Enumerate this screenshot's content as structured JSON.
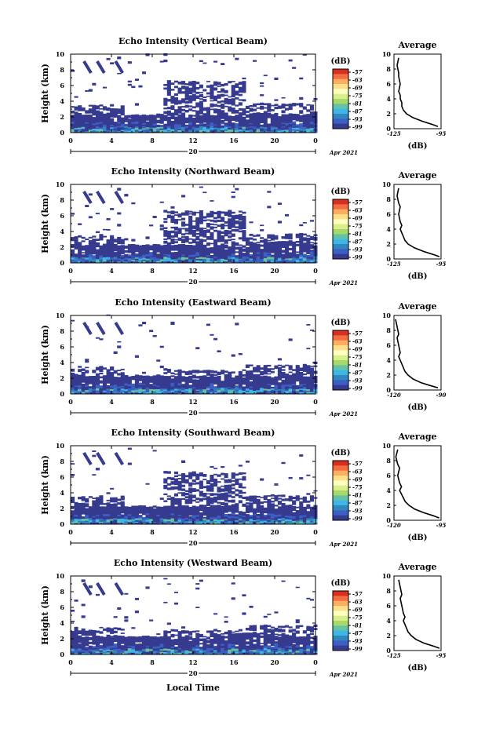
{
  "figure": {
    "xlabel": "Local Time",
    "date_label": "Apr 2021",
    "day_label": "20",
    "colorbar": {
      "unit": "(dB)",
      "ticks": [
        "-57",
        "-63",
        "-69",
        "-75",
        "-81",
        "-87",
        "-93",
        "-99"
      ],
      "colors": [
        "#d7301f",
        "#f46d43",
        "#fdae61",
        "#fee08b",
        "#ffffbf",
        "#d9ef8b",
        "#a6d96a",
        "#66c2a5",
        "#3fb6e8",
        "#3288bd",
        "#3b5fc4",
        "#363b8f"
      ]
    },
    "avg_title": "Average",
    "avg_xlabel": "(dB)"
  },
  "chart_data": [
    {
      "type": "heatmap",
      "title": "Echo Intensity (Vertical Beam)",
      "ylabel": "Height (km)",
      "xlabel": "Local Time",
      "xlim": [
        0,
        24
      ],
      "ylim": [
        0,
        10
      ],
      "xticks": [
        "0",
        "4",
        "8",
        "12",
        "16",
        "20",
        "0"
      ],
      "yticks": [
        "0",
        "2",
        "4",
        "6",
        "8",
        "10"
      ],
      "profile": {
        "type": "line",
        "title": "Average",
        "xlabel": "(dB)",
        "xlim": [
          -125,
          -95
        ],
        "xtick_labels": [
          "-125",
          "-95"
        ],
        "x": [
          -97,
          -101,
          -107,
          -113,
          -117,
          -119,
          -120,
          -120,
          -121,
          -121,
          -122,
          -121,
          -122,
          -122,
          -123,
          -122
        ],
        "y": [
          0.3,
          0.6,
          1.0,
          1.5,
          2.0,
          2.5,
          3.0,
          3.5,
          4.0,
          4.5,
          5.0,
          6.0,
          7.0,
          7.5,
          8.5,
          9.5
        ]
      }
    },
    {
      "type": "heatmap",
      "title": "Echo Intensity (Northward Beam)",
      "ylabel": "Height (km)",
      "xlabel": "Local Time",
      "xlim": [
        0,
        24
      ],
      "ylim": [
        0,
        10
      ],
      "xticks": [
        "0",
        "4",
        "8",
        "12",
        "16",
        "20",
        "0"
      ],
      "yticks": [
        "0",
        "2",
        "4",
        "6",
        "8",
        "10"
      ],
      "profile": {
        "type": "line",
        "title": "Average",
        "xlabel": "(dB)",
        "xlim": [
          -125,
          -95
        ],
        "xtick_labels": [
          "-125",
          "-95"
        ],
        "x": [
          -96,
          -100,
          -106,
          -112,
          -116,
          -118,
          -119,
          -120,
          -121,
          -120,
          -121,
          -122,
          -121,
          -122,
          -123,
          -122
        ],
        "y": [
          0.3,
          0.6,
          1.0,
          1.5,
          2.0,
          2.5,
          3.0,
          3.5,
          4.0,
          4.5,
          5.0,
          6.0,
          7.0,
          7.5,
          8.5,
          9.5
        ]
      }
    },
    {
      "type": "heatmap",
      "title": "Echo Intensity (Eastward Beam)",
      "ylabel": "Height (km)",
      "xlabel": "Local Time",
      "xlim": [
        0,
        24
      ],
      "ylim": [
        0,
        10
      ],
      "xticks": [
        "0",
        "4",
        "8",
        "12",
        "16",
        "20",
        "0"
      ],
      "yticks": [
        "0",
        "2",
        "4",
        "6",
        "8",
        "10"
      ],
      "profile": {
        "type": "line",
        "title": "Average",
        "xlabel": "(dB)",
        "xlim": [
          -120,
          -90
        ],
        "xtick_labels": [
          "-120",
          "-90"
        ],
        "x": [
          -92,
          -97,
          -103,
          -108,
          -111,
          -113,
          -114,
          -115,
          -116,
          -117,
          -116,
          -117,
          -118,
          -117,
          -118,
          -119
        ],
        "y": [
          0.3,
          0.6,
          1.0,
          1.5,
          2.0,
          2.5,
          3.0,
          3.5,
          4.0,
          4.5,
          5.0,
          6.0,
          7.0,
          7.5,
          8.5,
          9.5
        ]
      }
    },
    {
      "type": "heatmap",
      "title": "Echo Intensity (Southward Beam)",
      "ylabel": "Height (km)",
      "xlabel": "Local Time",
      "xlim": [
        0,
        24
      ],
      "ylim": [
        0,
        10
      ],
      "xticks": [
        "0",
        "4",
        "8",
        "12",
        "16",
        "20",
        "0"
      ],
      "yticks": [
        "0",
        "2",
        "4",
        "6",
        "8",
        "10"
      ],
      "profile": {
        "type": "line",
        "title": "Average",
        "xlabel": "(dB)",
        "xlim": [
          -120,
          -95
        ],
        "xtick_labels": [
          "-120",
          "-95"
        ],
        "x": [
          -96,
          -99,
          -104,
          -109,
          -112,
          -114,
          -115,
          -116,
          -117,
          -116,
          -117,
          -118,
          -117,
          -118,
          -119,
          -118
        ],
        "y": [
          0.3,
          0.6,
          1.0,
          1.5,
          2.0,
          2.5,
          3.0,
          3.5,
          4.0,
          4.5,
          5.0,
          6.0,
          7.0,
          7.5,
          8.5,
          9.5
        ]
      }
    },
    {
      "type": "heatmap",
      "title": "Echo Intensity (Westward Beam)",
      "ylabel": "Height (km)",
      "xlabel": "Local Time",
      "xlim": [
        0,
        24
      ],
      "ylim": [
        0,
        10
      ],
      "xticks": [
        "0",
        "4",
        "8",
        "12",
        "16",
        "20",
        "0"
      ],
      "yticks": [
        "0",
        "2",
        "4",
        "6",
        "8",
        "10"
      ],
      "profile": {
        "type": "line",
        "title": "Average",
        "xlabel": "(dB)",
        "xlim": [
          -125,
          -95
        ],
        "xtick_labels": [
          "-125",
          "-95"
        ],
        "x": [
          -96,
          -100,
          -106,
          -111,
          -114,
          -116,
          -117,
          -118,
          -119,
          -118,
          -119,
          -120,
          -121,
          -120,
          -121,
          -122
        ],
        "y": [
          0.3,
          0.6,
          1.0,
          1.5,
          2.0,
          2.5,
          3.0,
          3.5,
          4.0,
          4.5,
          5.0,
          6.0,
          7.0,
          7.5,
          8.5,
          9.5
        ]
      }
    }
  ]
}
